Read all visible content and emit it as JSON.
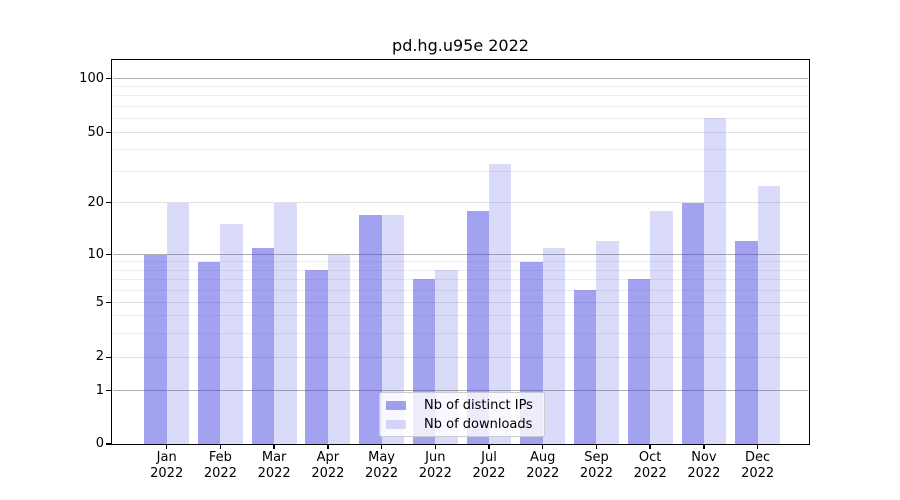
{
  "title": "pd.hg.u95e 2022",
  "chart_data": {
    "type": "bar",
    "title": "pd.hg.u95e 2022",
    "categories": [
      "Jan",
      "Feb",
      "Mar",
      "Apr",
      "May",
      "Jun",
      "Jul",
      "Aug",
      "Sep",
      "Oct",
      "Nov",
      "Dec"
    ],
    "year_label": "2022",
    "series": [
      {
        "name": "Nb of distinct IPs",
        "values": [
          10,
          9,
          11,
          8,
          17,
          7,
          18,
          9,
          6,
          7,
          20,
          12
        ]
      },
      {
        "name": "Nb of downloads",
        "values": [
          20,
          15,
          20,
          10,
          17,
          8,
          33,
          11,
          12,
          18,
          60,
          25
        ]
      }
    ],
    "yscale": "log",
    "ylim": [
      0,
      128
    ],
    "y_ticks_labeled": [
      0,
      1,
      2,
      5,
      10,
      20,
      50,
      100
    ],
    "y_ticks_minor": [
      3,
      4,
      6,
      7,
      8,
      9,
      30,
      40,
      60,
      70,
      80,
      90
    ],
    "y_ticks_emphasis": [
      1,
      10,
      100
    ],
    "grid": true,
    "legend_position": "lower-center"
  },
  "colors": {
    "bar_ips": "rgba(60,60,225,0.48)",
    "bar_downloads": "rgba(60,60,225,0.19)",
    "grid_major": "#b0b0b0",
    "grid_mid": "#e2e2e6",
    "grid_minor": "#ededed",
    "axis": "#000000",
    "background": "#ffffff",
    "text": "#000000",
    "legend_border": "#cccccc"
  }
}
